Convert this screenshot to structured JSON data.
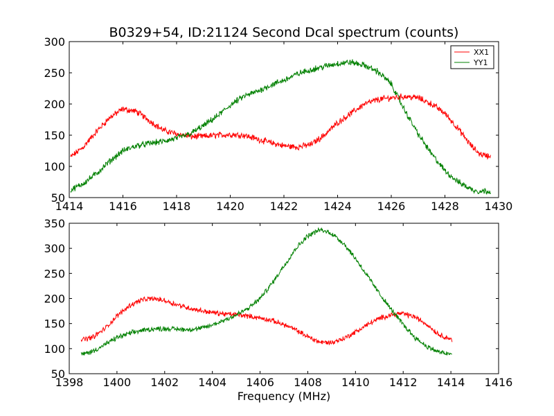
{
  "chart_data": [
    {
      "type": "line",
      "title": "B0329+54, ID:21124 Second Dcal spectrum (counts)",
      "xlabel": "",
      "ylabel": "",
      "xlim": [
        1414,
        1430
      ],
      "ylim": [
        50,
        300
      ],
      "xticks": [
        "1414",
        "1416",
        "1418",
        "1420",
        "1422",
        "1424",
        "1426",
        "1428",
        "1430"
      ],
      "yticks": [
        "50",
        "100",
        "150",
        "200",
        "250",
        "300"
      ],
      "grid": false,
      "legend": "top-right",
      "noise": [
        4,
        4
      ],
      "series": [
        {
          "name": "XX1",
          "color": "#ff0000",
          "x": [
            1414.05,
            1414.5,
            1415.0,
            1415.5,
            1416.0,
            1416.5,
            1417.0,
            1417.5,
            1418.0,
            1418.5,
            1419.0,
            1419.5,
            1420.0,
            1420.5,
            1421.0,
            1421.5,
            1422.0,
            1422.5,
            1423.0,
            1423.5,
            1424.0,
            1424.5,
            1425.0,
            1425.5,
            1426.0,
            1426.5,
            1427.0,
            1427.5,
            1428.0,
            1428.5,
            1429.0,
            1429.3,
            1429.7
          ],
          "y": [
            115,
            130,
            155,
            178,
            192,
            188,
            173,
            158,
            152,
            148,
            148,
            150,
            151,
            150,
            144,
            138,
            133,
            131,
            135,
            150,
            170,
            185,
            200,
            207,
            210,
            212,
            210,
            200,
            185,
            160,
            132,
            120,
            116
          ]
        },
        {
          "name": "YY1",
          "color": "#008000",
          "x": [
            1414.05,
            1414.5,
            1415.0,
            1415.5,
            1416.0,
            1416.5,
            1417.0,
            1417.5,
            1418.0,
            1418.5,
            1419.0,
            1419.5,
            1420.0,
            1420.5,
            1421.0,
            1421.5,
            1422.0,
            1422.5,
            1423.0,
            1423.5,
            1424.0,
            1424.5,
            1425.0,
            1425.5,
            1426.0,
            1426.5,
            1427.0,
            1427.5,
            1428.0,
            1428.5,
            1429.0,
            1429.3,
            1429.7
          ],
          "y": [
            62,
            72,
            88,
            108,
            125,
            133,
            137,
            140,
            145,
            152,
            165,
            180,
            198,
            212,
            220,
            230,
            238,
            248,
            255,
            260,
            265,
            267,
            262,
            252,
            232,
            190,
            152,
            120,
            93,
            75,
            63,
            60,
            61
          ]
        }
      ]
    },
    {
      "type": "line",
      "title": "",
      "xlabel": "Frequency (MHz)",
      "ylabel": "",
      "xlim": [
        1398,
        1416
      ],
      "ylim": [
        50,
        350
      ],
      "xticks": [
        "1398",
        "1400",
        "1402",
        "1404",
        "1406",
        "1408",
        "1410",
        "1412",
        "1414",
        "1416"
      ],
      "yticks": [
        "50",
        "100",
        "150",
        "200",
        "250",
        "300",
        "350"
      ],
      "grid": false,
      "legend": "none",
      "noise": [
        4,
        4
      ],
      "series": [
        {
          "name": "XX1",
          "color": "#ff0000",
          "x": [
            1398.5,
            1399.0,
            1399.5,
            1400.0,
            1400.5,
            1401.0,
            1401.5,
            1402.0,
            1402.5,
            1403.0,
            1403.5,
            1404.0,
            1404.5,
            1405.0,
            1405.5,
            1406.0,
            1406.5,
            1407.0,
            1407.5,
            1408.0,
            1408.5,
            1409.0,
            1409.5,
            1410.0,
            1410.5,
            1411.0,
            1411.5,
            1412.0,
            1412.5,
            1413.0,
            1413.5,
            1414.05
          ],
          "y": [
            117,
            123,
            140,
            165,
            185,
            197,
            200,
            196,
            188,
            181,
            176,
            172,
            169,
            168,
            165,
            161,
            156,
            148,
            137,
            124,
            113,
            112,
            120,
            133,
            148,
            160,
            168,
            170,
            163,
            148,
            128,
            118
          ]
        },
        {
          "name": "YY1",
          "color": "#008000",
          "x": [
            1398.5,
            1399.0,
            1399.5,
            1400.0,
            1400.5,
            1401.0,
            1401.5,
            1402.0,
            1402.5,
            1403.0,
            1403.5,
            1404.0,
            1404.5,
            1405.0,
            1405.5,
            1406.0,
            1406.5,
            1407.0,
            1407.5,
            1408.0,
            1408.5,
            1409.0,
            1409.5,
            1410.0,
            1410.5,
            1411.0,
            1411.5,
            1412.0,
            1412.5,
            1413.0,
            1413.5,
            1414.05
          ],
          "y": [
            88,
            95,
            108,
            122,
            130,
            136,
            139,
            140,
            139,
            138,
            140,
            147,
            157,
            167,
            180,
            200,
            230,
            265,
            300,
            325,
            337,
            330,
            310,
            280,
            245,
            210,
            178,
            148,
            122,
            104,
            93,
            88
          ]
        }
      ]
    }
  ]
}
